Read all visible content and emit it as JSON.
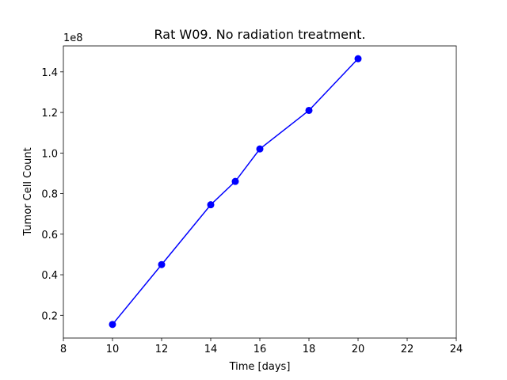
{
  "chart_data": {
    "type": "line",
    "title": "Rat W09. No radiation treatment.",
    "xlabel": "Time [days]",
    "ylabel": "Tumor Cell Count",
    "y_offset_label": "1e8",
    "y_scale_factor": 100000000,
    "xlim": [
      8,
      24
    ],
    "ylim": [
      8800000,
      152800000
    ],
    "x_ticks": [
      8,
      10,
      12,
      14,
      16,
      18,
      20,
      22,
      24
    ],
    "y_ticks": [
      0.2,
      0.4,
      0.6,
      0.8,
      1.0,
      1.2,
      1.4
    ],
    "x_tick_labels": [
      "8",
      "10",
      "12",
      "14",
      "16",
      "18",
      "20",
      "22",
      "24"
    ],
    "y_tick_labels": [
      "0.2",
      "0.4",
      "0.6",
      "0.8",
      "1.0",
      "1.2",
      "1.4"
    ],
    "grid": false,
    "colors": {
      "series": "#0000ff",
      "axes": "#000000"
    },
    "series": [
      {
        "x": [
          10,
          12,
          14,
          15,
          16,
          18,
          20
        ],
        "y": [
          15500000,
          45000000,
          74500000,
          86000000,
          102000000,
          121000000,
          146500000
        ]
      }
    ]
  }
}
